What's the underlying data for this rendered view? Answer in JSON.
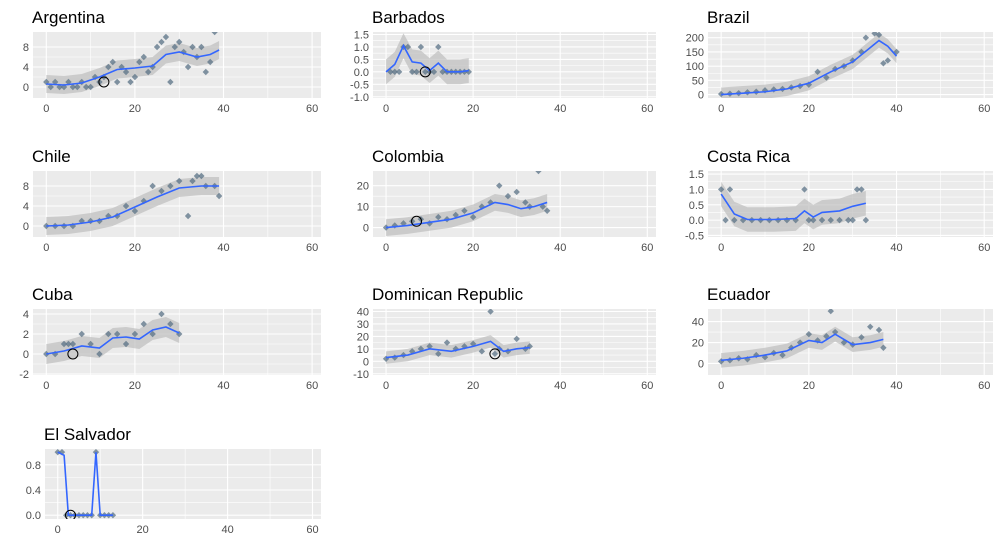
{
  "chart_data": [
    {
      "type": "scatter",
      "title": "Argentina",
      "xlim": [
        -3,
        62
      ],
      "ylim": [
        -2.2,
        11
      ],
      "xticks": [
        0,
        20,
        40,
        60
      ],
      "yticks": [
        0,
        4,
        8
      ],
      "points": [
        [
          0,
          1
        ],
        [
          1,
          0
        ],
        [
          2,
          1
        ],
        [
          3,
          0
        ],
        [
          4,
          0
        ],
        [
          5,
          1
        ],
        [
          6,
          0
        ],
        [
          7,
          0
        ],
        [
          8,
          1
        ],
        [
          9,
          0
        ],
        [
          10,
          0
        ],
        [
          11,
          2
        ],
        [
          12,
          1
        ],
        [
          13,
          2
        ],
        [
          14,
          4
        ],
        [
          15,
          5
        ],
        [
          16,
          1
        ],
        [
          17,
          4
        ],
        [
          18,
          3
        ],
        [
          19,
          1
        ],
        [
          20,
          2
        ],
        [
          21,
          5
        ],
        [
          22,
          6
        ],
        [
          23,
          3
        ],
        [
          24,
          4
        ],
        [
          25,
          8
        ],
        [
          26,
          9
        ],
        [
          27,
          10
        ],
        [
          28,
          1
        ],
        [
          29,
          8
        ],
        [
          30,
          9
        ],
        [
          31,
          7
        ],
        [
          32,
          4
        ],
        [
          33,
          8
        ],
        [
          34,
          6
        ],
        [
          35,
          8
        ],
        [
          36,
          3
        ],
        [
          37,
          5
        ],
        [
          38,
          11
        ]
      ],
      "smooth": [
        [
          0,
          0.6
        ],
        [
          4,
          0.4
        ],
        [
          8,
          0.8
        ],
        [
          12,
          2
        ],
        [
          16,
          3.5
        ],
        [
          20,
          3.8
        ],
        [
          24,
          4.2
        ],
        [
          27,
          6.5
        ],
        [
          30,
          7.0
        ],
        [
          34,
          6.0
        ],
        [
          37,
          6.5
        ],
        [
          39,
          7.4
        ]
      ],
      "band": 1.8,
      "highlight": [
        13,
        1
      ]
    },
    {
      "type": "scatter",
      "title": "Barbados",
      "xlim": [
        -3,
        62
      ],
      "ylim": [
        -1.05,
        1.6
      ],
      "xticks": [
        0,
        20,
        40,
        60
      ],
      "yticks": [
        -1.0,
        -0.5,
        0.0,
        0.5,
        1.0,
        1.5
      ],
      "ytick_labels": [
        "-1.0",
        "-0.5",
        "0.0",
        "0.5",
        "1.0",
        "1.5"
      ],
      "points": [
        [
          1,
          0
        ],
        [
          2,
          0
        ],
        [
          3,
          0
        ],
        [
          4,
          1
        ],
        [
          5,
          1
        ],
        [
          6,
          0
        ],
        [
          7,
          0
        ],
        [
          8,
          1
        ],
        [
          9,
          0
        ],
        [
          10,
          0
        ],
        [
          11,
          0
        ],
        [
          12,
          1
        ],
        [
          13,
          0
        ],
        [
          14,
          0
        ],
        [
          15,
          0
        ],
        [
          16,
          0
        ],
        [
          17,
          0
        ],
        [
          18,
          0
        ],
        [
          19,
          0
        ]
      ],
      "smooth": [
        [
          0,
          0
        ],
        [
          2,
          0.3
        ],
        [
          4,
          1.05
        ],
        [
          6,
          0.4
        ],
        [
          8,
          0.35
        ],
        [
          10,
          0.05
        ],
        [
          12,
          0.35
        ],
        [
          14,
          0.0
        ],
        [
          17,
          0.0
        ],
        [
          19,
          0.05
        ]
      ],
      "band": 0.5,
      "highlight": [
        9,
        0
      ]
    },
    {
      "type": "scatter",
      "title": "Brazil",
      "xlim": [
        -3,
        62
      ],
      "ylim": [
        -12,
        220
      ],
      "xticks": [
        0,
        20,
        40,
        60
      ],
      "yticks": [
        0,
        50,
        100,
        150,
        200
      ],
      "points": [
        [
          0,
          2
        ],
        [
          2,
          3
        ],
        [
          4,
          5
        ],
        [
          6,
          8
        ],
        [
          8,
          10
        ],
        [
          10,
          15
        ],
        [
          12,
          18
        ],
        [
          14,
          20
        ],
        [
          16,
          25
        ],
        [
          18,
          30
        ],
        [
          20,
          35
        ],
        [
          22,
          80
        ],
        [
          24,
          60
        ],
        [
          26,
          90
        ],
        [
          28,
          100
        ],
        [
          30,
          120
        ],
        [
          32,
          150
        ],
        [
          33,
          200
        ],
        [
          35,
          215
        ],
        [
          36,
          210
        ],
        [
          37,
          110
        ],
        [
          38,
          120
        ],
        [
          40,
          150
        ]
      ],
      "smooth": [
        [
          0,
          0
        ],
        [
          5,
          5
        ],
        [
          10,
          10
        ],
        [
          15,
          20
        ],
        [
          20,
          40
        ],
        [
          25,
          80
        ],
        [
          30,
          115
        ],
        [
          34,
          165
        ],
        [
          36,
          190
        ],
        [
          38,
          170
        ],
        [
          40,
          135
        ]
      ],
      "band": 25,
      "highlight": null
    },
    {
      "type": "scatter",
      "title": "Chile",
      "xlim": [
        -3,
        62
      ],
      "ylim": [
        -2.2,
        11
      ],
      "xticks": [
        0,
        20,
        40,
        60
      ],
      "yticks": [
        0,
        4,
        8
      ],
      "points": [
        [
          0,
          0
        ],
        [
          2,
          0
        ],
        [
          4,
          0
        ],
        [
          6,
          0
        ],
        [
          8,
          1
        ],
        [
          10,
          1
        ],
        [
          12,
          1
        ],
        [
          14,
          2
        ],
        [
          16,
          2
        ],
        [
          18,
          4
        ],
        [
          20,
          3
        ],
        [
          22,
          5
        ],
        [
          24,
          8
        ],
        [
          26,
          7
        ],
        [
          28,
          8
        ],
        [
          30,
          9
        ],
        [
          32,
          2
        ],
        [
          33,
          9
        ],
        [
          34,
          10
        ],
        [
          35,
          10
        ],
        [
          36,
          8
        ],
        [
          38,
          8
        ],
        [
          39,
          6
        ]
      ],
      "smooth": [
        [
          0,
          0
        ],
        [
          5,
          0.2
        ],
        [
          10,
          0.8
        ],
        [
          15,
          1.8
        ],
        [
          20,
          3.8
        ],
        [
          25,
          5.8
        ],
        [
          30,
          7.6
        ],
        [
          35,
          8.0
        ],
        [
          39,
          8.0
        ]
      ],
      "band": 1.8,
      "highlight": null
    },
    {
      "type": "scatter",
      "title": "Colombia",
      "xlim": [
        -3,
        62
      ],
      "ylim": [
        -4.5,
        27
      ],
      "xticks": [
        0,
        20,
        40,
        60
      ],
      "yticks": [
        0,
        10,
        20
      ],
      "points": [
        [
          0,
          0
        ],
        [
          2,
          1
        ],
        [
          4,
          2
        ],
        [
          6,
          3
        ],
        [
          8,
          4
        ],
        [
          10,
          2
        ],
        [
          12,
          5
        ],
        [
          14,
          4
        ],
        [
          16,
          6
        ],
        [
          18,
          8
        ],
        [
          20,
          5
        ],
        [
          22,
          10
        ],
        [
          24,
          12
        ],
        [
          26,
          20
        ],
        [
          28,
          15
        ],
        [
          30,
          17
        ],
        [
          32,
          12
        ],
        [
          33,
          10
        ],
        [
          35,
          27
        ],
        [
          36,
          10
        ],
        [
          37,
          8
        ]
      ],
      "smooth": [
        [
          0,
          0
        ],
        [
          5,
          1
        ],
        [
          10,
          2.5
        ],
        [
          15,
          4
        ],
        [
          20,
          7
        ],
        [
          25,
          12
        ],
        [
          28,
          11
        ],
        [
          31,
          9
        ],
        [
          34,
          10
        ],
        [
          37,
          12
        ]
      ],
      "band": 4,
      "highlight": [
        7,
        3
      ]
    },
    {
      "type": "scatter",
      "title": "Costa Rica",
      "xlim": [
        -3,
        62
      ],
      "ylim": [
        -0.55,
        1.6
      ],
      "xticks": [
        0,
        20,
        40,
        60
      ],
      "yticks": [
        -0.5,
        0.0,
        0.5,
        1.0,
        1.5
      ],
      "ytick_labels": [
        "-0.5",
        "0.0",
        "0.5",
        "1.0",
        "1.5"
      ],
      "points": [
        [
          0,
          1
        ],
        [
          1,
          0
        ],
        [
          2,
          1
        ],
        [
          3,
          0
        ],
        [
          5,
          0
        ],
        [
          7,
          0
        ],
        [
          9,
          0
        ],
        [
          11,
          0
        ],
        [
          13,
          0
        ],
        [
          15,
          0
        ],
        [
          17,
          0
        ],
        [
          19,
          1
        ],
        [
          20,
          0
        ],
        [
          21,
          0
        ],
        [
          23,
          0
        ],
        [
          25,
          0
        ],
        [
          27,
          0
        ],
        [
          29,
          0
        ],
        [
          30,
          0
        ],
        [
          31,
          1
        ],
        [
          32,
          1
        ],
        [
          33,
          0
        ]
      ],
      "smooth": [
        [
          0,
          0.85
        ],
        [
          3,
          0.2
        ],
        [
          6,
          0.02
        ],
        [
          12,
          0.02
        ],
        [
          17,
          0.05
        ],
        [
          19,
          0.3
        ],
        [
          21,
          0.1
        ],
        [
          23,
          0.25
        ],
        [
          27,
          0.3
        ],
        [
          30,
          0.45
        ],
        [
          33,
          0.55
        ]
      ],
      "band": 0.4,
      "highlight": null
    },
    {
      "type": "scatter",
      "title": "Cuba",
      "xlim": [
        -3,
        62
      ],
      "ylim": [
        -2.1,
        4.5
      ],
      "xticks": [
        0,
        20,
        40,
        60
      ],
      "yticks": [
        -2,
        0,
        2,
        4
      ],
      "points": [
        [
          0,
          0
        ],
        [
          2,
          0
        ],
        [
          4,
          1
        ],
        [
          5,
          1
        ],
        [
          6,
          1
        ],
        [
          8,
          2
        ],
        [
          10,
          1
        ],
        [
          12,
          0
        ],
        [
          14,
          2
        ],
        [
          16,
          2
        ],
        [
          18,
          1
        ],
        [
          20,
          2
        ],
        [
          22,
          3
        ],
        [
          24,
          2
        ],
        [
          26,
          4
        ],
        [
          28,
          3
        ],
        [
          30,
          2
        ]
      ],
      "smooth": [
        [
          0,
          0
        ],
        [
          4,
          0.3
        ],
        [
          8,
          0.8
        ],
        [
          12,
          0.6
        ],
        [
          15,
          1.6
        ],
        [
          18,
          1.7
        ],
        [
          21,
          1.5
        ],
        [
          24,
          2.4
        ],
        [
          27,
          2.7
        ],
        [
          30,
          2.1
        ]
      ],
      "band": 1.0,
      "highlight": [
        6,
        0
      ]
    },
    {
      "type": "scatter",
      "title": "Dominican Republic",
      "xlim": [
        -3,
        62
      ],
      "ylim": [
        -11,
        42
      ],
      "xticks": [
        0,
        20,
        40,
        60
      ],
      "yticks": [
        -10,
        0,
        10,
        20,
        30,
        40
      ],
      "points": [
        [
          0,
          2
        ],
        [
          2,
          3
        ],
        [
          4,
          5
        ],
        [
          6,
          8
        ],
        [
          8,
          10
        ],
        [
          10,
          12
        ],
        [
          12,
          6
        ],
        [
          14,
          15
        ],
        [
          16,
          10
        ],
        [
          18,
          12
        ],
        [
          20,
          14
        ],
        [
          22,
          8
        ],
        [
          24,
          40
        ],
        [
          25,
          6
        ],
        [
          26,
          10
        ],
        [
          28,
          8
        ],
        [
          30,
          18
        ],
        [
          32,
          10
        ],
        [
          33,
          12
        ]
      ],
      "smooth": [
        [
          0,
          3
        ],
        [
          5,
          5
        ],
        [
          10,
          10
        ],
        [
          15,
          8
        ],
        [
          20,
          12
        ],
        [
          24,
          16
        ],
        [
          27,
          8
        ],
        [
          30,
          10
        ],
        [
          33,
          11
        ]
      ],
      "band": 5,
      "highlight": [
        25,
        6
      ]
    },
    {
      "type": "scatter",
      "title": "Ecuador",
      "xlim": [
        -3,
        62
      ],
      "ylim": [
        -11,
        52
      ],
      "xticks": [
        0,
        20,
        40,
        60
      ],
      "yticks": [
        0,
        20,
        40
      ],
      "points": [
        [
          0,
          2
        ],
        [
          2,
          3
        ],
        [
          4,
          5
        ],
        [
          6,
          4
        ],
        [
          8,
          8
        ],
        [
          10,
          6
        ],
        [
          12,
          10
        ],
        [
          14,
          8
        ],
        [
          16,
          15
        ],
        [
          18,
          20
        ],
        [
          20,
          28
        ],
        [
          22,
          22
        ],
        [
          24,
          26
        ],
        [
          25,
          50
        ],
        [
          26,
          30
        ],
        [
          28,
          20
        ],
        [
          30,
          18
        ],
        [
          32,
          25
        ],
        [
          34,
          35
        ],
        [
          36,
          32
        ],
        [
          37,
          15
        ]
      ],
      "smooth": [
        [
          0,
          3
        ],
        [
          5,
          5
        ],
        [
          10,
          8
        ],
        [
          15,
          12
        ],
        [
          20,
          22
        ],
        [
          23,
          20
        ],
        [
          26,
          28
        ],
        [
          30,
          18
        ],
        [
          34,
          20
        ],
        [
          37,
          23
        ]
      ],
      "band": 7,
      "highlight": null
    },
    {
      "type": "scatter",
      "title": "El Salvador",
      "xlim": [
        -3,
        62
      ],
      "ylim": [
        -0.06,
        1.05
      ],
      "xticks": [
        0,
        20,
        40,
        60
      ],
      "yticks": [
        0.0,
        0.4,
        0.8
      ],
      "ytick_labels": [
        "0.0",
        "0.4",
        "0.8"
      ],
      "points": [
        [
          0,
          1
        ],
        [
          1,
          1
        ],
        [
          2,
          0
        ],
        [
          3,
          0
        ],
        [
          4,
          0
        ],
        [
          5,
          0
        ],
        [
          6,
          0
        ],
        [
          7,
          0
        ],
        [
          8,
          0
        ],
        [
          9,
          1
        ],
        [
          10,
          0
        ],
        [
          11,
          0
        ],
        [
          12,
          0
        ],
        [
          13,
          0
        ]
      ],
      "smooth": [
        [
          0,
          1
        ],
        [
          1.5,
          0.95
        ],
        [
          2.5,
          0.0
        ],
        [
          8,
          0.0
        ],
        [
          9,
          1.0
        ],
        [
          10,
          0.0
        ],
        [
          13,
          0.0
        ]
      ],
      "band": 0,
      "highlight": [
        3,
        0
      ]
    }
  ],
  "colors": {
    "panel_bg": "#ebebeb",
    "grid": "#ffffff",
    "point": "#5a7185",
    "smooth": "#3366ff",
    "band": "#bdbdbd",
    "highlight_ring": "#000000"
  }
}
